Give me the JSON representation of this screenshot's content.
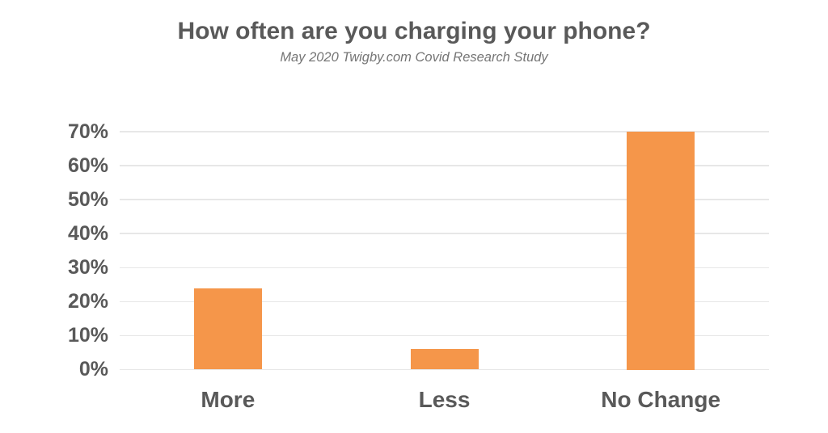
{
  "chart_data": {
    "type": "bar",
    "title": "How often are you charging your phone?",
    "subtitle": "May 2020 Twigby.com Covid Research Study",
    "categories": [
      "More",
      "Less",
      "No Change"
    ],
    "values": [
      24,
      6,
      70
    ],
    "value_unit": "%",
    "xlabel": "",
    "ylabel": "",
    "ylim": [
      0,
      70
    ],
    "ytick_step": 10,
    "ytick_labels": [
      "0%",
      "10%",
      "20%",
      "30%",
      "40%",
      "50%",
      "60%",
      "70%"
    ],
    "grid": true,
    "legend": false,
    "colors": {
      "bar": "#F5964A",
      "axis_text": "#595959",
      "title_text": "#595959",
      "subtitle_text": "#757575",
      "gridline": "#E7E7E7",
      "background": "#FFFFFF"
    }
  }
}
